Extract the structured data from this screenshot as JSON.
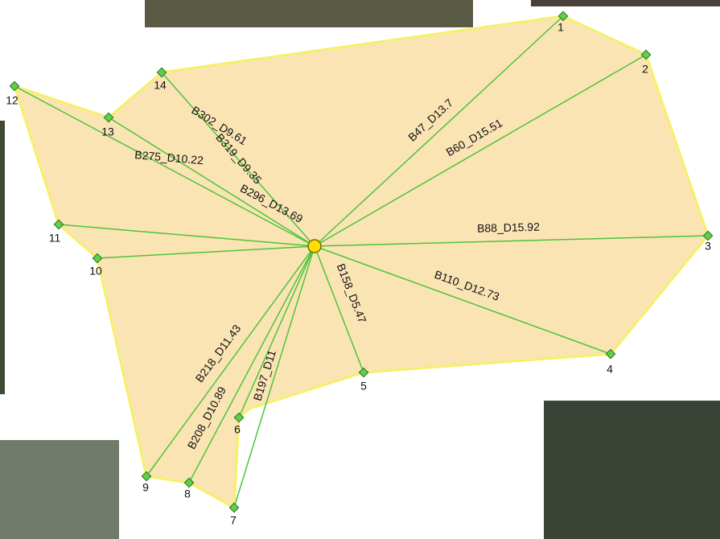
{
  "nodes": [
    {
      "label": "1",
      "ray": "B47_D13.7"
    },
    {
      "label": "2",
      "ray": "B60_D15.51"
    },
    {
      "label": "3",
      "ray": "B88_D15.92"
    },
    {
      "label": "4",
      "ray": "B110_D12.73"
    },
    {
      "label": "5",
      "ray": "B158_D5.47"
    },
    {
      "label": "6"
    },
    {
      "label": "7",
      "ray": "B197_D11"
    },
    {
      "label": "8",
      "ray": "B208_D10.89"
    },
    {
      "label": "9",
      "ray": "B218_D11.43"
    },
    {
      "label": "10"
    },
    {
      "label": "11",
      "ray": "B275_D10.22"
    },
    {
      "label": "12",
      "ray": "B296_D13.69"
    },
    {
      "label": "13",
      "ray": "B302_D9.61"
    },
    {
      "label": "14",
      "ray": "B319_D9.35"
    }
  ]
}
